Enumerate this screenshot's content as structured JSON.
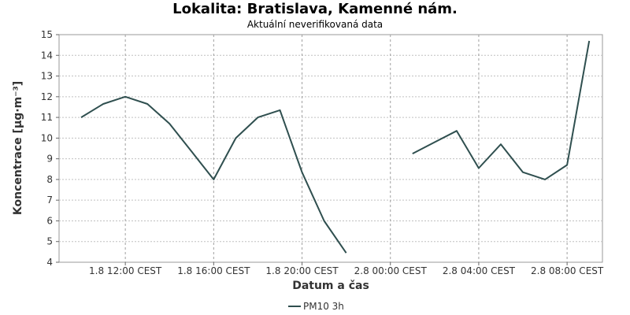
{
  "chart_data": {
    "type": "line",
    "title": "Lokalita: Bratislava, Kamenné nám.",
    "subtitle": "Aktuální neverifikovaná data",
    "xlabel": "Datum a čas",
    "ylabel": "Koncentrace [µg·m⁻³]",
    "ylim": [
      4,
      15
    ],
    "y_ticks": [
      4,
      5,
      6,
      7,
      8,
      9,
      10,
      11,
      12,
      13,
      14,
      15
    ],
    "x_ticks": [
      {
        "hour": 12,
        "label": "1.8 12:00 CEST"
      },
      {
        "hour": 16,
        "label": "1.8 16:00 CEST"
      },
      {
        "hour": 20,
        "label": "1.8 20:00 CEST"
      },
      {
        "hour": 24,
        "label": "2.8 00:00 CEST"
      },
      {
        "hour": 28,
        "label": "2.8 04:00 CEST"
      },
      {
        "hour": 32,
        "label": "2.8 08:00 CEST"
      }
    ],
    "grid": true,
    "legend_position": "bottom-center",
    "series": [
      {
        "name": "PM10 3h",
        "color": "#2f4f4f",
        "points": [
          [
            10,
            11.0
          ],
          [
            11,
            11.65
          ],
          [
            12,
            12.0
          ],
          [
            13,
            11.65
          ],
          [
            14,
            10.7
          ],
          [
            15,
            9.35
          ],
          [
            16,
            8.0
          ],
          [
            17,
            10.0
          ],
          [
            18,
            11.0
          ],
          [
            19,
            11.35
          ],
          [
            20,
            8.35
          ],
          [
            21,
            6.0
          ],
          [
            22,
            4.45
          ],
          null,
          [
            25,
            9.25
          ],
          [
            26,
            9.8
          ],
          [
            27,
            10.35
          ],
          [
            28,
            8.55
          ],
          [
            29,
            9.7
          ],
          [
            30,
            8.35
          ],
          [
            31,
            8.0
          ],
          [
            32,
            8.7
          ],
          [
            33,
            14.7
          ]
        ]
      }
    ]
  }
}
